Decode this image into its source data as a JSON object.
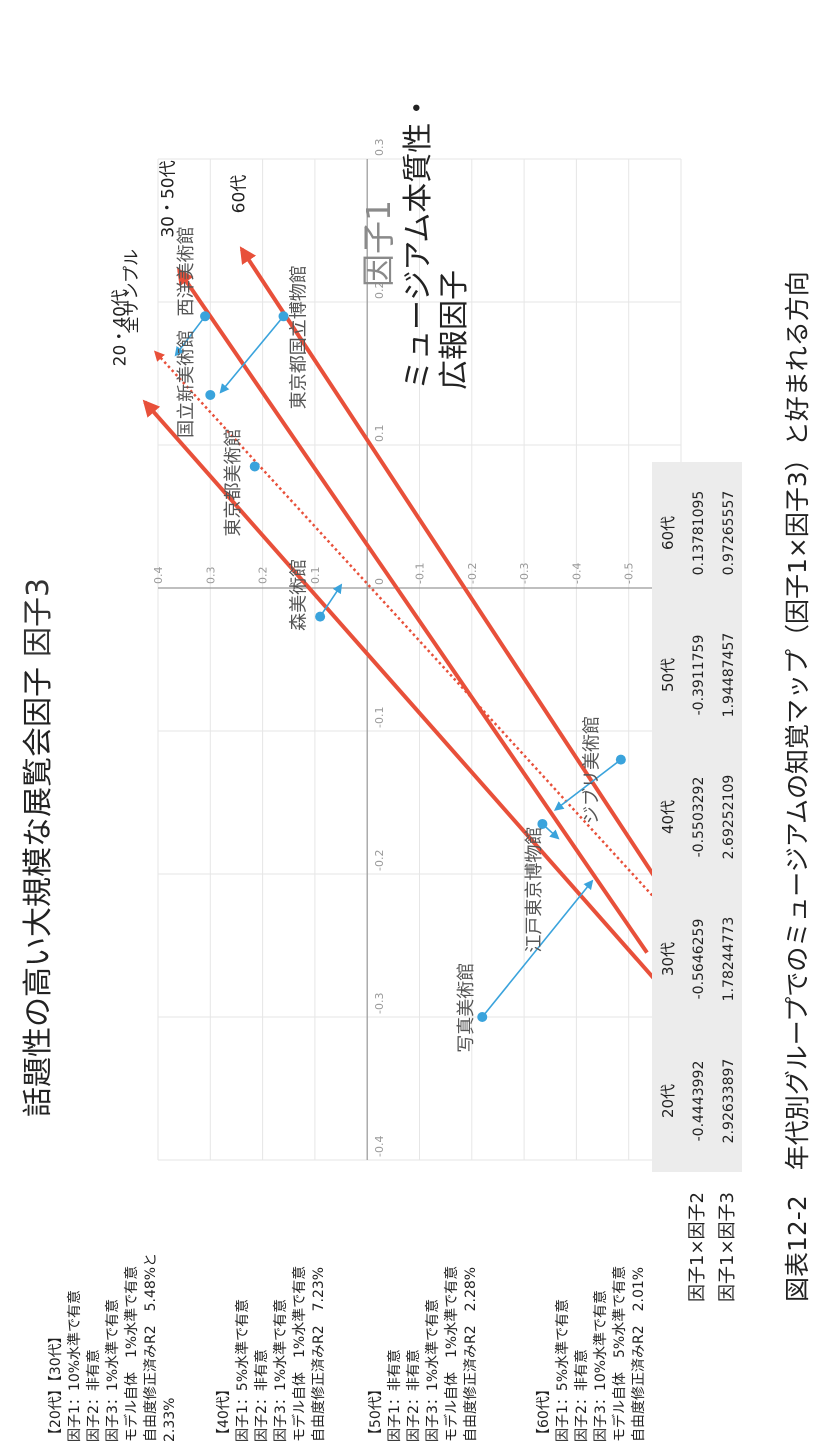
{
  "caption": "図表12-2　年代別グループでのミュージアムの知覚マップ（因子1×因子3）と好まれる方向",
  "colors": {
    "accent": "#e8503a",
    "point": "#3aa3dc",
    "grid": "#e6e6e6",
    "axis": "#999999",
    "table_head": "#ececec"
  },
  "chart_data": {
    "type": "scatter",
    "title": "話題性の高い大規模な展覧会因子",
    "xlabel": "因子3",
    "ylabel": "因子1",
    "ylabel_sub": "ミュージアム本質性・広報因子",
    "xlim": [
      -0.4,
      0.3
    ],
    "ylim": [
      -0.6,
      0.4
    ],
    "x_ticks": [
      "-0.4",
      "-0.3",
      "-0.2",
      "-0.1",
      "0",
      "0.1",
      "0.2",
      "0.3"
    ],
    "y_ticks": [
      "0.4",
      "0.3",
      "0.2",
      "0.1",
      "0",
      "-0.1",
      "-0.2",
      "-0.3",
      "-0.4",
      "-0.5",
      "-0.6"
    ],
    "grid": true,
    "points": [
      {
        "name": "西洋美術館",
        "x": 0.19,
        "y": 0.31
      },
      {
        "name": "東京都国立博物館",
        "x": 0.19,
        "y": 0.16
      },
      {
        "name": "国立新美術館",
        "x": 0.135,
        "y": 0.3
      },
      {
        "name": "東京都美術館",
        "x": 0.085,
        "y": 0.215
      },
      {
        "name": "森美術館",
        "x": -0.02,
        "y": 0.09
      },
      {
        "name": "写真美術館",
        "x": -0.3,
        "y": -0.22
      },
      {
        "name": "江戸東京博物館",
        "x": -0.165,
        "y": -0.335
      },
      {
        "name": "ジブリ美術館",
        "x": -0.12,
        "y": -0.485
      }
    ],
    "series": [
      {
        "name": "全サンプル",
        "style": "dotted",
        "factor2": "",
        "factor3": ""
      },
      {
        "name": "20・40代",
        "style": "arrow",
        "factor2": "-0.4443992 / -0.5503292",
        "factor3": "2.92633897 / 2.69252109"
      },
      {
        "name": "30・50代",
        "style": "arrow",
        "factor2": "-0.5646259 / -0.3911759",
        "factor3": "1.78244773 / 1.94487457"
      },
      {
        "name": "60代",
        "style": "arrow",
        "factor2": "0.13781095",
        "factor3": "0.97265557"
      }
    ]
  },
  "table": {
    "columns": [
      "20代",
      "30代",
      "40代",
      "50代",
      "60代"
    ],
    "rows": [
      {
        "label": "因子1×因子2",
        "values": [
          "-0.4443992",
          "-0.5646259",
          "-0.5503292",
          "-0.3911759",
          "0.13781095"
        ]
      },
      {
        "label": "因子1×因子3",
        "values": [
          "2.92633897",
          "1.78244773",
          "2.69252109",
          "1.94487457",
          "0.97265557"
        ]
      }
    ]
  },
  "notes": [
    [
      "【20代】【30代】",
      "因子1：10%水準で有意",
      "因子2：非有意",
      "因子3：1%水準で有意",
      "モデル自体　1%水準で有意",
      "自由度修正済みR2　5.48%と",
      "2.33%"
    ],
    [
      "【40代】",
      "因子1：5%水準で有意",
      "因子2：非有意",
      "因子3：1%水準で有意",
      "モデル自体　1%水準で有意",
      "自由度修正済みR2　7.23%"
    ],
    [
      "【50代】",
      "因子1：非有意",
      "因子2：非有意",
      "因子3：1%水準で有意",
      "モデル自体　1%水準で有意",
      "自由度修正済みR2　2.28%"
    ],
    [
      "【60代】",
      "因子1：5%水準で有意",
      "因子2：非有意",
      "因子3：10%水準で有意",
      "モデル自体　5%水準で有意",
      "自由度修正済みR2　2.01%"
    ]
  ]
}
